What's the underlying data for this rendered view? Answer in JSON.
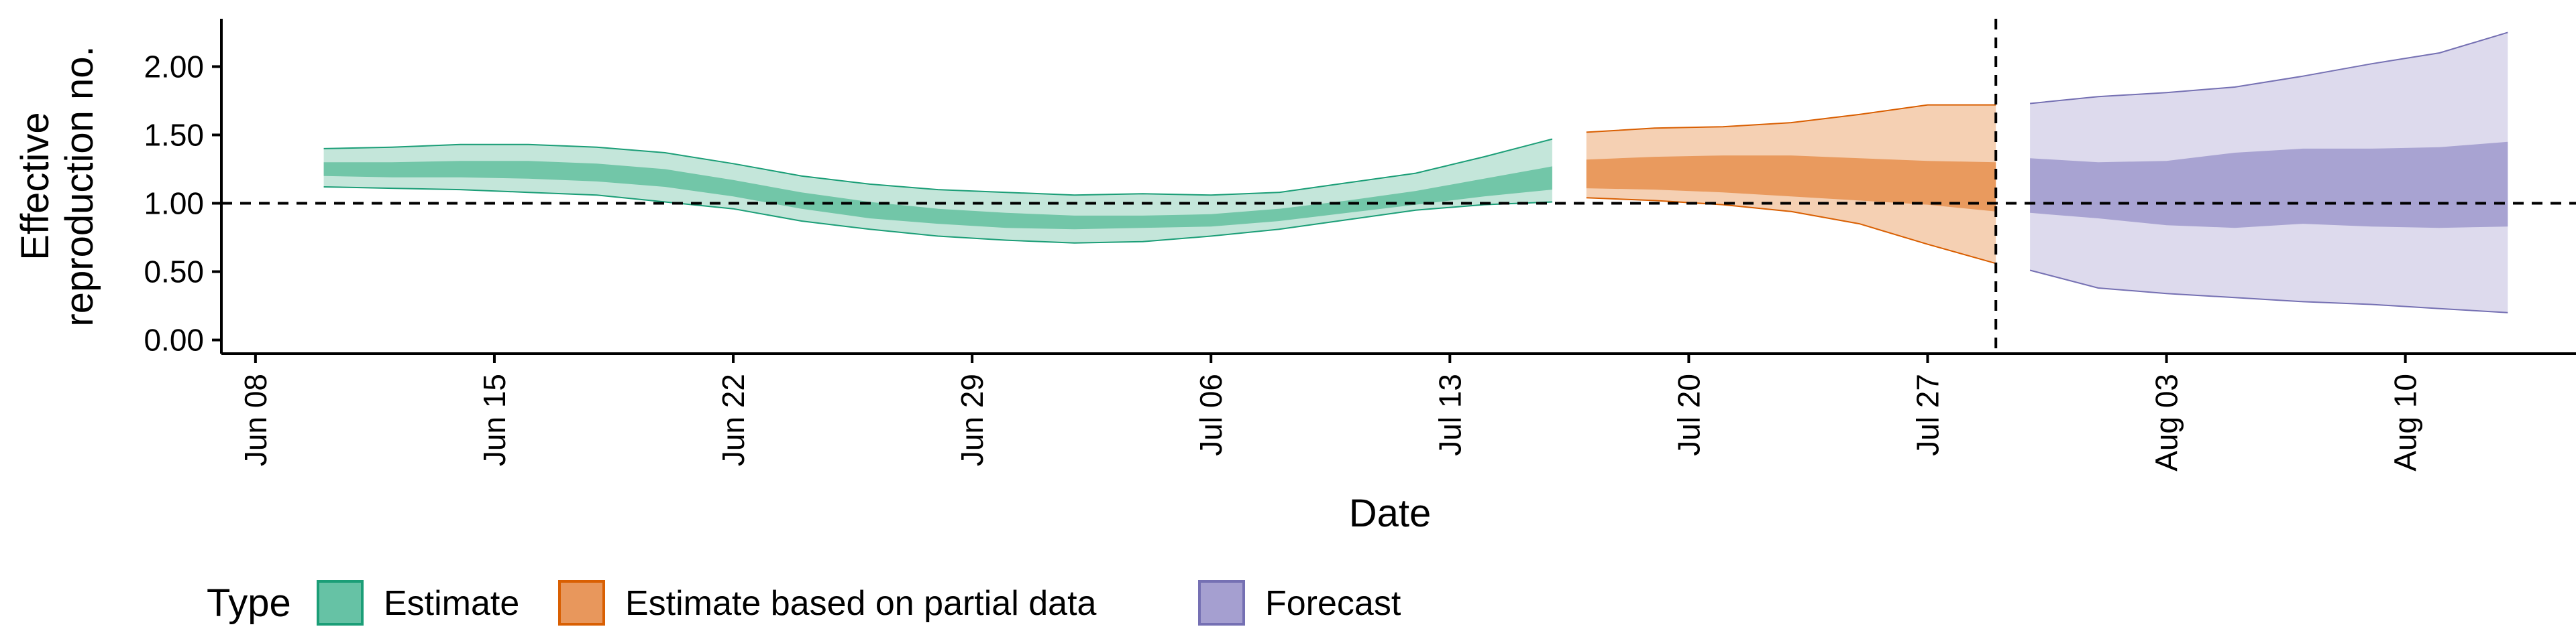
{
  "chart_data": {
    "type": "area",
    "title": "",
    "xlabel": "Date",
    "ylabel_lines": [
      "Effective",
      "reproduction no."
    ],
    "x_ticks": [
      {
        "date": "2020-06-08",
        "label": "Jun 08"
      },
      {
        "date": "2020-06-15",
        "label": "Jun 15"
      },
      {
        "date": "2020-06-22",
        "label": "Jun 22"
      },
      {
        "date": "2020-06-29",
        "label": "Jun 29"
      },
      {
        "date": "2020-07-06",
        "label": "Jul 06"
      },
      {
        "date": "2020-07-13",
        "label": "Jul 13"
      },
      {
        "date": "2020-07-20",
        "label": "Jul 20"
      },
      {
        "date": "2020-07-27",
        "label": "Jul 27"
      },
      {
        "date": "2020-08-03",
        "label": "Aug 03"
      },
      {
        "date": "2020-08-10",
        "label": "Aug 10"
      }
    ],
    "xlim": [
      "2020-06-07",
      "2020-08-15"
    ],
    "y_ticks": [
      {
        "value": 0,
        "label": "0.00"
      },
      {
        "value": 0.5,
        "label": "0.50"
      },
      {
        "value": 1,
        "label": "1.00"
      },
      {
        "value": 1.5,
        "label": "1.50"
      },
      {
        "value": 2,
        "label": "2.00"
      }
    ],
    "ylim": [
      -0.1,
      2.35
    ],
    "reference_line_y": 1.0,
    "vertical_line_x": "2020-07-29",
    "grid": false,
    "legend": {
      "title": "Type",
      "position": "bottom-left",
      "entries": [
        {
          "label": "Estimate",
          "fill": "#66C2A5",
          "stroke": "#1B9E77"
        },
        {
          "label": "Estimate based on partial data",
          "fill": "#E8975C",
          "stroke": "#D95F02"
        },
        {
          "label": "Forecast",
          "fill": "#A59FD0",
          "stroke": "#7570B3"
        }
      ]
    },
    "series": [
      {
        "name": "Estimate",
        "outer_fill": "#C4E6DA",
        "inner_fill": "#72C6A8",
        "stroke": "#1B9E77",
        "dates": [
          "2020-06-10",
          "2020-06-12",
          "2020-06-14",
          "2020-06-16",
          "2020-06-18",
          "2020-06-20",
          "2020-06-22",
          "2020-06-24",
          "2020-06-26",
          "2020-06-28",
          "2020-06-30",
          "2020-07-02",
          "2020-07-04",
          "2020-07-06",
          "2020-07-08",
          "2020-07-10",
          "2020-07-12",
          "2020-07-14",
          "2020-07-16"
        ],
        "upper90": [
          1.4,
          1.41,
          1.43,
          1.43,
          1.41,
          1.37,
          1.29,
          1.2,
          1.14,
          1.1,
          1.08,
          1.06,
          1.07,
          1.06,
          1.08,
          1.15,
          1.22,
          1.34,
          1.47
        ],
        "upper50": [
          1.3,
          1.3,
          1.31,
          1.31,
          1.29,
          1.25,
          1.17,
          1.08,
          1.01,
          0.96,
          0.93,
          0.91,
          0.91,
          0.92,
          0.96,
          1.02,
          1.09,
          1.18,
          1.27
        ],
        "lower50": [
          1.2,
          1.19,
          1.19,
          1.18,
          1.16,
          1.12,
          1.05,
          0.96,
          0.89,
          0.85,
          0.82,
          0.81,
          0.82,
          0.83,
          0.87,
          0.93,
          0.99,
          1.05,
          1.1
        ],
        "lower90": [
          1.12,
          1.11,
          1.1,
          1.08,
          1.06,
          1.01,
          0.96,
          0.87,
          0.81,
          0.76,
          0.73,
          0.71,
          0.72,
          0.76,
          0.81,
          0.88,
          0.95,
          0.99,
          1.01
        ]
      },
      {
        "name": "Estimate based on partial data",
        "outer_fill": "#F5D0B3",
        "inner_fill": "#E99A5E",
        "stroke": "#D95F02",
        "dates": [
          "2020-07-17",
          "2020-07-19",
          "2020-07-21",
          "2020-07-23",
          "2020-07-25",
          "2020-07-27",
          "2020-07-29"
        ],
        "upper90": [
          1.52,
          1.55,
          1.56,
          1.59,
          1.65,
          1.72,
          1.72
        ],
        "upper50": [
          1.32,
          1.34,
          1.35,
          1.35,
          1.33,
          1.31,
          1.3
        ],
        "lower50": [
          1.11,
          1.1,
          1.08,
          1.05,
          1.02,
          0.99,
          0.94
        ],
        "lower90": [
          1.04,
          1.02,
          0.99,
          0.94,
          0.85,
          0.7,
          0.56
        ]
      },
      {
        "name": "Forecast",
        "outer_fill": "#DDDAED",
        "inner_fill": "#A8A3D2",
        "stroke": "#7570B3",
        "dates": [
          "2020-07-30",
          "2020-08-01",
          "2020-08-03",
          "2020-08-05",
          "2020-08-07",
          "2020-08-09",
          "2020-08-11",
          "2020-08-13"
        ],
        "upper90": [
          1.73,
          1.78,
          1.81,
          1.85,
          1.93,
          2.02,
          2.1,
          2.25
        ],
        "upper50": [
          1.33,
          1.3,
          1.31,
          1.37,
          1.4,
          1.4,
          1.41,
          1.45
        ],
        "lower50": [
          0.93,
          0.89,
          0.84,
          0.82,
          0.85,
          0.83,
          0.82,
          0.83
        ],
        "lower90": [
          0.51,
          0.38,
          0.34,
          0.31,
          0.28,
          0.26,
          0.23,
          0.2
        ]
      }
    ]
  }
}
